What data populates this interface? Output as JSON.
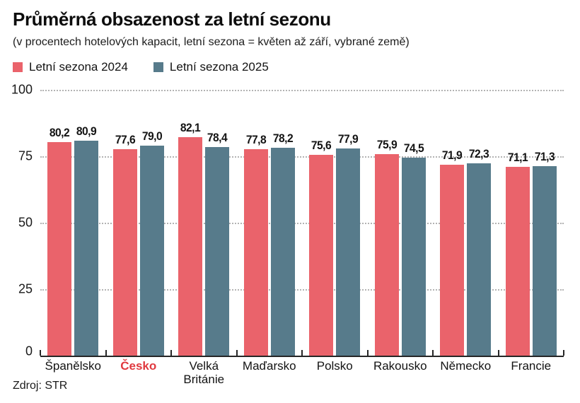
{
  "header": {
    "title": "Průměrná obsazenost za letní sezonu",
    "subtitle": "(v procentech hotelových kapacit, letní sezona = květen až září, vybrané země)"
  },
  "legend": [
    {
      "label": "Letní sezona 2024",
      "color": "#ea636b"
    },
    {
      "label": "Letní sezona 2025",
      "color": "#577b8b"
    }
  ],
  "source": "Zdroj: STR",
  "colors": {
    "series_2024": "#ea636b",
    "series_2025": "#577b8b",
    "highlight_label": "#e0393f",
    "axis": "#262626",
    "gridline": "#b3b3b3"
  },
  "chart_data": {
    "type": "bar",
    "title": "Průměrná obsazenost za letní sezonu",
    "subtitle": "(v procentech hotelových kapacit, letní sezona = květen až září, vybrané země)",
    "categories": [
      "Španělsko",
      "Česko",
      "Velká Británie",
      "Maďarsko",
      "Polsko",
      "Rakousko",
      "Německo",
      "Francie"
    ],
    "highlighted_category": "Česko",
    "series": [
      {
        "name": "Letní sezona 2024",
        "color": "#ea636b",
        "values": [
          80.2,
          77.6,
          82.1,
          77.8,
          75.6,
          75.9,
          71.9,
          71.1
        ],
        "value_labels": [
          "80,2",
          "77,6",
          "82,1",
          "77,8",
          "75,6",
          "75,9",
          "71,9",
          "71,1"
        ]
      },
      {
        "name": "Letní sezona 2025",
        "color": "#577b8b",
        "values": [
          80.9,
          79.0,
          78.4,
          78.2,
          77.9,
          74.5,
          72.3,
          71.3
        ],
        "value_labels": [
          "80,9",
          "79,0",
          "78,4",
          "78,2",
          "77,9",
          "74,5",
          "72,3",
          "71,3"
        ]
      }
    ],
    "xlabel": "",
    "ylabel": "",
    "ylim": [
      0,
      100
    ],
    "yticks": [
      0,
      25,
      50,
      75,
      100
    ],
    "grid": "horizontal dotted, behind bars",
    "legend_position": "top-left",
    "source": "Zdroj: STR"
  }
}
